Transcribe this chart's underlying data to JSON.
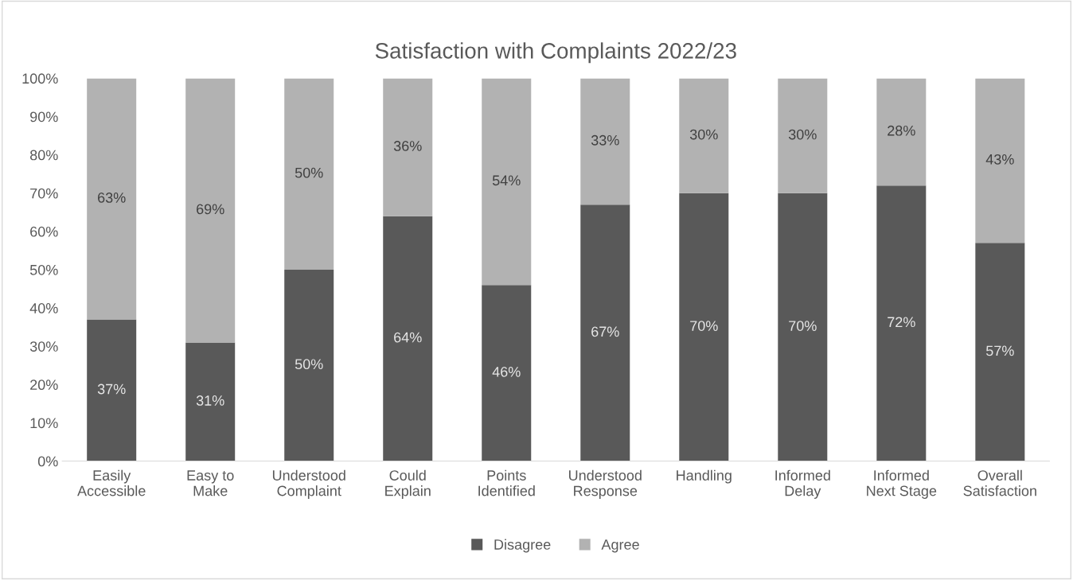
{
  "chart_data": {
    "type": "bar",
    "stacked": true,
    "title": "Satisfaction with Complaints 2022/23",
    "categories": [
      "Easily\nAccessible",
      "Easy to\nMake",
      "Understood\nComplaint",
      "Could\nExplain",
      "Points\nIdentified",
      "Understood\nResponse",
      "Handling",
      "Informed\nDelay",
      "Informed\nNext Stage",
      "Overall\nSatisfaction"
    ],
    "series": [
      {
        "name": "Disagree",
        "color": "#595959",
        "values": [
          37,
          31,
          50,
          64,
          46,
          67,
          70,
          70,
          72,
          57
        ],
        "value_labels": [
          "37%",
          "31%",
          "50%",
          "64%",
          "46%",
          "67%",
          "70%",
          "70%",
          "72%",
          "57%"
        ]
      },
      {
        "name": "Agree",
        "color": "#b2b2b2",
        "values": [
          63,
          69,
          50,
          36,
          54,
          33,
          30,
          30,
          28,
          43
        ],
        "value_labels": [
          "63%",
          "69%",
          "50%",
          "36%",
          "54%",
          "33%",
          "30%",
          "30%",
          "28%",
          "43%"
        ]
      }
    ],
    "ylim": [
      0,
      100
    ],
    "yticks": [
      {
        "value": 0,
        "label": "0%"
      },
      {
        "value": 10,
        "label": "10%"
      },
      {
        "value": 20,
        "label": "20%"
      },
      {
        "value": 30,
        "label": "30%"
      },
      {
        "value": 40,
        "label": "40%"
      },
      {
        "value": 50,
        "label": "50%"
      },
      {
        "value": 60,
        "label": "60%"
      },
      {
        "value": 70,
        "label": "70%"
      },
      {
        "value": 80,
        "label": "80%"
      },
      {
        "value": 90,
        "label": "90%"
      },
      {
        "value": 100,
        "label": "100%"
      }
    ],
    "grid": false,
    "legend": "bottom"
  }
}
